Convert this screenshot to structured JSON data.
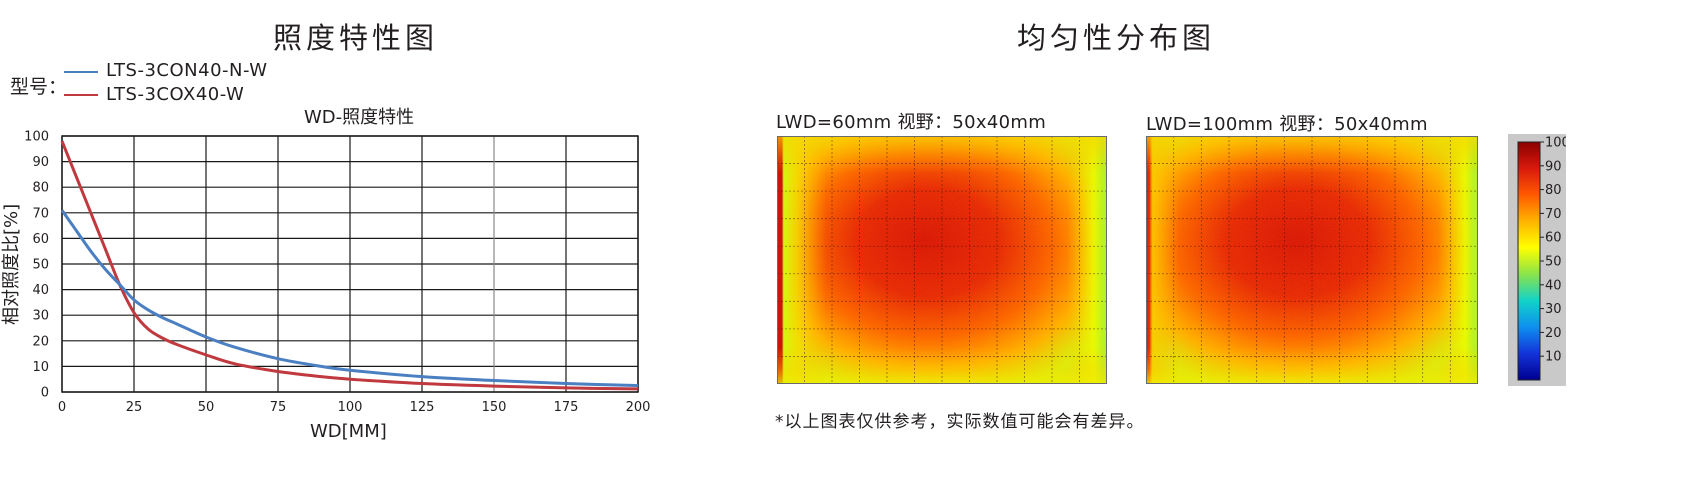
{
  "left_section": {
    "title": "照度特性图",
    "model_label": "型号："
  },
  "right_section": {
    "title": "均匀性分布图",
    "note": "*以上图表仅供参考，实际数值可能会有差异。"
  },
  "chart_data": [
    {
      "type": "line",
      "title": "WD-照度特性",
      "xlabel": "WD[MM]",
      "ylabel": "相对照度比[%]",
      "xlim": [
        0,
        200
      ],
      "ylim": [
        0,
        100
      ],
      "xticks": [
        0,
        25,
        50,
        75,
        100,
        125,
        150,
        175,
        200
      ],
      "yticks": [
        0,
        10,
        20,
        30,
        40,
        50,
        60,
        70,
        80,
        90,
        100
      ],
      "grid": true,
      "legend_position": "top-left, above plot",
      "series": [
        {
          "name": "LTS-3CON40-N-W",
          "color": "#4a7fc1",
          "x": [
            0,
            5,
            10,
            15,
            20,
            25,
            30,
            35,
            40,
            50,
            60,
            75,
            90,
            100,
            125,
            150,
            175,
            200
          ],
          "y": [
            71,
            63,
            55,
            48,
            42,
            36,
            32,
            29,
            26.5,
            21.5,
            17.5,
            13,
            10,
            8.5,
            6,
            4.5,
            3.3,
            2.5
          ]
        },
        {
          "name": "LTS-3COX40-W",
          "color": "#c0393e",
          "x": [
            0,
            5,
            10,
            15,
            20,
            25,
            30,
            35,
            40,
            50,
            60,
            75,
            90,
            100,
            125,
            150,
            175,
            200
          ],
          "y": [
            98,
            84,
            70,
            56,
            42,
            31,
            24.5,
            21,
            18.5,
            14.5,
            11,
            8,
            6,
            5,
            3.3,
            2.3,
            1.6,
            1.2
          ]
        }
      ]
    },
    {
      "type": "heatmap",
      "title": "LWD=60mm  视野：50x40mm",
      "grid_rows": 9,
      "grid_cols": 12,
      "left_edge_band": true
    },
    {
      "type": "heatmap",
      "title": "LWD=100mm  视野：50x40mm",
      "grid_rows": 9,
      "grid_cols": 12,
      "left_edge_band": false
    },
    {
      "type": "colorbar",
      "range": [
        0,
        100
      ],
      "ticks": [
        100,
        90,
        80,
        70,
        60,
        50,
        40,
        30,
        20,
        10
      ],
      "colors": [
        "#8b0000",
        "#d91a0d",
        "#ff5a00",
        "#ffb300",
        "#ffff00",
        "#8ae34b",
        "#12d3c8",
        "#0e8ff0",
        "#1333d8",
        "#000090"
      ]
    }
  ]
}
